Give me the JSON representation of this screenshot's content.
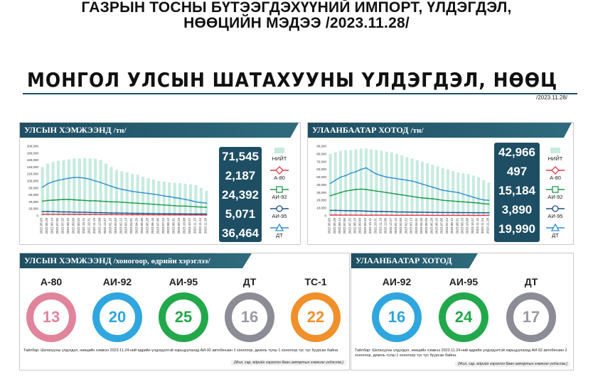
{
  "header": {
    "title_line1": "ГАЗРЫН ТОСНЫ БҮТЭЭГДЭХҮҮНИЙ ИМПОРТ, ҮЛДЭГДЭЛ,",
    "title_line2": "НӨӨЦИЙН МЭДЭЭ /2023.11.28/",
    "banner": "МОНГОЛ УЛСЫН ШАТАХУУНЫ ҮЛДЭГДЭЛ, НӨӨЦ",
    "date": "/2023.11.28/"
  },
  "colors": {
    "dark_teal": "#1e4e63",
    "total_bar": "#c7ebe0",
    "a80": "#e0394a",
    "ai92": "#1e9a4a",
    "ai95": "#1e4e8c",
    "dt": "#2f8fd0",
    "tc1": "#f0902a",
    "a80_ring": "#e0849c",
    "ai92_ring": "#2fa6de",
    "ai95_ring": "#22a84a",
    "dt_ring": "#8c8c96",
    "tc1_ring": "#f0902a"
  },
  "national_panel": {
    "title": "УЛСЫН ХЭМЖЭЭНД",
    "unit": "/тн/",
    "totals": [
      "71,545",
      "2,187",
      "24,392",
      "5,071",
      "36,464"
    ],
    "legend": [
      "НИЙТ",
      "А-80",
      "АИ-92",
      "АИ-95",
      "ДТ"
    ]
  },
  "ub_panel": {
    "title": "УЛААНБААТАР ХОТОД",
    "unit": "/тн/",
    "totals": [
      "42,966",
      "497",
      "15,184",
      "3,890",
      "19,990"
    ],
    "legend": [
      "НИЙТ",
      "А-80",
      "АИ-92",
      "АИ-95",
      "ДТ"
    ]
  },
  "days_national": {
    "title": "УЛСЫН ХЭМЖЭЭНД",
    "unit": "/хоногоор, өдрийн хэрэглээ/",
    "items": [
      {
        "label": "А-80",
        "value": "13"
      },
      {
        "label": "АИ-92",
        "value": "20"
      },
      {
        "label": "АИ-95",
        "value": "25"
      },
      {
        "label": "ДТ",
        "value": "16"
      },
      {
        "label": "ТС-1",
        "value": "22"
      }
    ],
    "note": "Тайлбар: Шатахууны үлдэгдэл, нөөцийн хэмжээ 2023.11.24-ний өдрийн үлдэгдэлтэй харьцуулахад АИ-92 автобензин 1 хоногоор, дизель түлш 1 хоногоор тус тус буурсан байна.",
    "source": "(Жил, сар, өдрийн хэрэглээ бөөн импортын хэмжээг үндэслэв.)"
  },
  "days_ub": {
    "title": "УЛААНБААТАР ХОТОД",
    "items": [
      {
        "label": "АИ-92",
        "value": "16"
      },
      {
        "label": "АИ-95",
        "value": "24"
      },
      {
        "label": "ДТ",
        "value": "17"
      }
    ],
    "note": "Тайлбар: Шатахууны үлдэгдэл, нөөцийн хэмжээ 2023.11.24-ний өдрийн үлдэгдэлтэй харьцуулахад АИ-92 автобензин 2 хоногоор, дизель түлш 1 хоногоор тус тус буурсан байна.",
    "source": "(Жил, сар, өдрийн хэрэглээ бөөн импортын хэмжээг үндэслэв.)"
  },
  "chart_data": [
    {
      "type": "bar",
      "title": "УЛСЫН ХЭМЖЭЭНД /тн/",
      "ylim": [
        0,
        200000
      ],
      "yticks": [
        "200,000",
        "180,000",
        "160,000",
        "140,000",
        "120,000",
        "100,000",
        "80,000",
        "60,000",
        "40,000",
        "20,000",
        "0"
      ],
      "x": [
        "2022.05.03",
        "2022.05.26",
        "2022.06.14",
        "2022.07.05",
        "2022.07.25",
        "2022.08.15",
        "2022.09.03",
        "2022.09.22",
        "2022.10.11",
        "2022.10.31",
        "2022.11.19",
        "2022.12.08",
        "2022.12.27",
        "2023.01.15",
        "2023.02.03",
        "2023.02.22",
        "2023.03.13",
        "2023.04.01",
        "2023.04.20",
        "2023.05.09",
        "2023.05.28",
        "2023.06.16",
        "2023.07.05",
        "2023.07.24",
        "2023.08.12",
        "2023.08.31",
        "2023.09.19",
        "2023.10.08",
        "2023.10.27",
        "2023.11.15",
        "2023.11.24",
        "2023.11.28"
      ],
      "series": [
        {
          "name": "НИЙТ",
          "values": [
            140000,
            150000,
            155000,
            158000,
            160000,
            162000,
            165000,
            165000,
            166000,
            165000,
            164000,
            160000,
            150000,
            140000,
            132000,
            128000,
            125000,
            120000,
            118000,
            112000,
            108000,
            104000,
            100000,
            98000,
            96000,
            95000,
            94000,
            92000,
            90000,
            88000,
            80000,
            71545
          ]
        },
        {
          "name": "А-80",
          "values": [
            4000,
            4200,
            4300,
            4300,
            4200,
            4100,
            4000,
            4000,
            4000,
            3900,
            3800,
            3700,
            3600,
            3500,
            3400,
            3300,
            3200,
            3100,
            3000,
            2900,
            2800,
            2700,
            2600,
            2600,
            2500,
            2500,
            2400,
            2400,
            2300,
            2300,
            2200,
            2187
          ]
        },
        {
          "name": "АИ-92",
          "values": [
            42000,
            44000,
            45000,
            46000,
            47000,
            47000,
            46000,
            45000,
            44000,
            43000,
            43000,
            42000,
            41000,
            40000,
            40000,
            39000,
            38000,
            37000,
            36000,
            35000,
            34000,
            33000,
            32000,
            31000,
            30000,
            29000,
            28000,
            28000,
            27000,
            26000,
            25000,
            24392
          ]
        },
        {
          "name": "АИ-95",
          "values": [
            12000,
            12000,
            12000,
            11500,
            11000,
            11000,
            10500,
            10000,
            10000,
            9500,
            9000,
            9000,
            8500,
            8000,
            8000,
            7500,
            7500,
            7000,
            7000,
            6800,
            6500,
            6300,
            6000,
            5900,
            5800,
            5600,
            5500,
            5400,
            5300,
            5200,
            5100,
            5071
          ]
        },
        {
          "name": "ДТ",
          "values": [
            82000,
            92000,
            98000,
            102000,
            105000,
            108000,
            110000,
            110000,
            108000,
            105000,
            100000,
            96000,
            90000,
            85000,
            80000,
            76000,
            73000,
            70000,
            68000,
            66000,
            64000,
            62000,
            60000,
            57000,
            55000,
            52000,
            50000,
            47000,
            44000,
            40000,
            38000,
            36464
          ]
        }
      ]
    },
    {
      "type": "bar",
      "title": "УЛААНБААТАР ХОТОД /тн/",
      "ylim": [
        0,
        90000
      ],
      "yticks": [
        "90,000",
        "80,000",
        "70,000",
        "60,000",
        "50,000",
        "40,000",
        "30,000",
        "20,000",
        "10,000",
        "0"
      ],
      "x": [
        "2022.05.03",
        "2022.05.26",
        "2022.06.14",
        "2022.07.05",
        "2022.07.25",
        "2022.08.15",
        "2022.09.03",
        "2022.09.22",
        "2022.10.11",
        "2022.10.31",
        "2022.11.19",
        "2022.12.08",
        "2022.12.27",
        "2023.01.15",
        "2023.02.03",
        "2023.02.22",
        "2023.03.13",
        "2023.04.01",
        "2023.04.20",
        "2023.05.09",
        "2023.05.28",
        "2023.06.16",
        "2023.07.05",
        "2023.07.24",
        "2023.08.12",
        "2023.08.31",
        "2023.09.19",
        "2023.10.08",
        "2023.10.27",
        "2023.11.15",
        "2023.11.24",
        "2023.11.28"
      ],
      "series": [
        {
          "name": "НИЙТ",
          "values": [
            80000,
            82000,
            84000,
            85000,
            85000,
            86000,
            87000,
            87000,
            86000,
            85000,
            84000,
            83000,
            82000,
            80000,
            78000,
            76000,
            74000,
            72000,
            70000,
            68000,
            66000,
            64000,
            62000,
            60000,
            58000,
            56000,
            55000,
            54000,
            52000,
            50000,
            46000,
            42966
          ]
        },
        {
          "name": "А-80",
          "values": [
            900,
            900,
            850,
            850,
            800,
            800,
            780,
            760,
            740,
            720,
            700,
            690,
            680,
            660,
            640,
            630,
            620,
            610,
            600,
            590,
            580,
            570,
            560,
            550,
            540,
            530,
            520,
            510,
            505,
            500,
            498,
            497
          ]
        },
        {
          "name": "АИ-92",
          "values": [
            26000,
            28000,
            30000,
            32000,
            33000,
            34000,
            34500,
            34000,
            33000,
            32000,
            31000,
            30000,
            29000,
            28000,
            27000,
            26000,
            25000,
            24000,
            23000,
            22500,
            22000,
            21000,
            20000,
            19500,
            19000,
            18500,
            18000,
            17500,
            17000,
            16500,
            15500,
            15184
          ]
        },
        {
          "name": "АИ-95",
          "values": [
            7000,
            7000,
            6800,
            6600,
            6500,
            6400,
            6200,
            6000,
            5800,
            5600,
            5500,
            5300,
            5200,
            5000,
            4900,
            4800,
            4700,
            4600,
            4500,
            4400,
            4300,
            4300,
            4200,
            4200,
            4100,
            4100,
            4000,
            4000,
            3950,
            3920,
            3900,
            3890
          ]
        },
        {
          "name": "ДТ",
          "values": [
            42000,
            46000,
            50000,
            52000,
            55000,
            57000,
            60000,
            62000,
            58000,
            54000,
            52000,
            50000,
            49000,
            48000,
            47000,
            46000,
            45000,
            43000,
            41000,
            39000,
            37000,
            35000,
            33000,
            32000,
            31000,
            30000,
            28000,
            26000,
            24000,
            22000,
            20500,
            19990
          ]
        }
      ]
    }
  ]
}
